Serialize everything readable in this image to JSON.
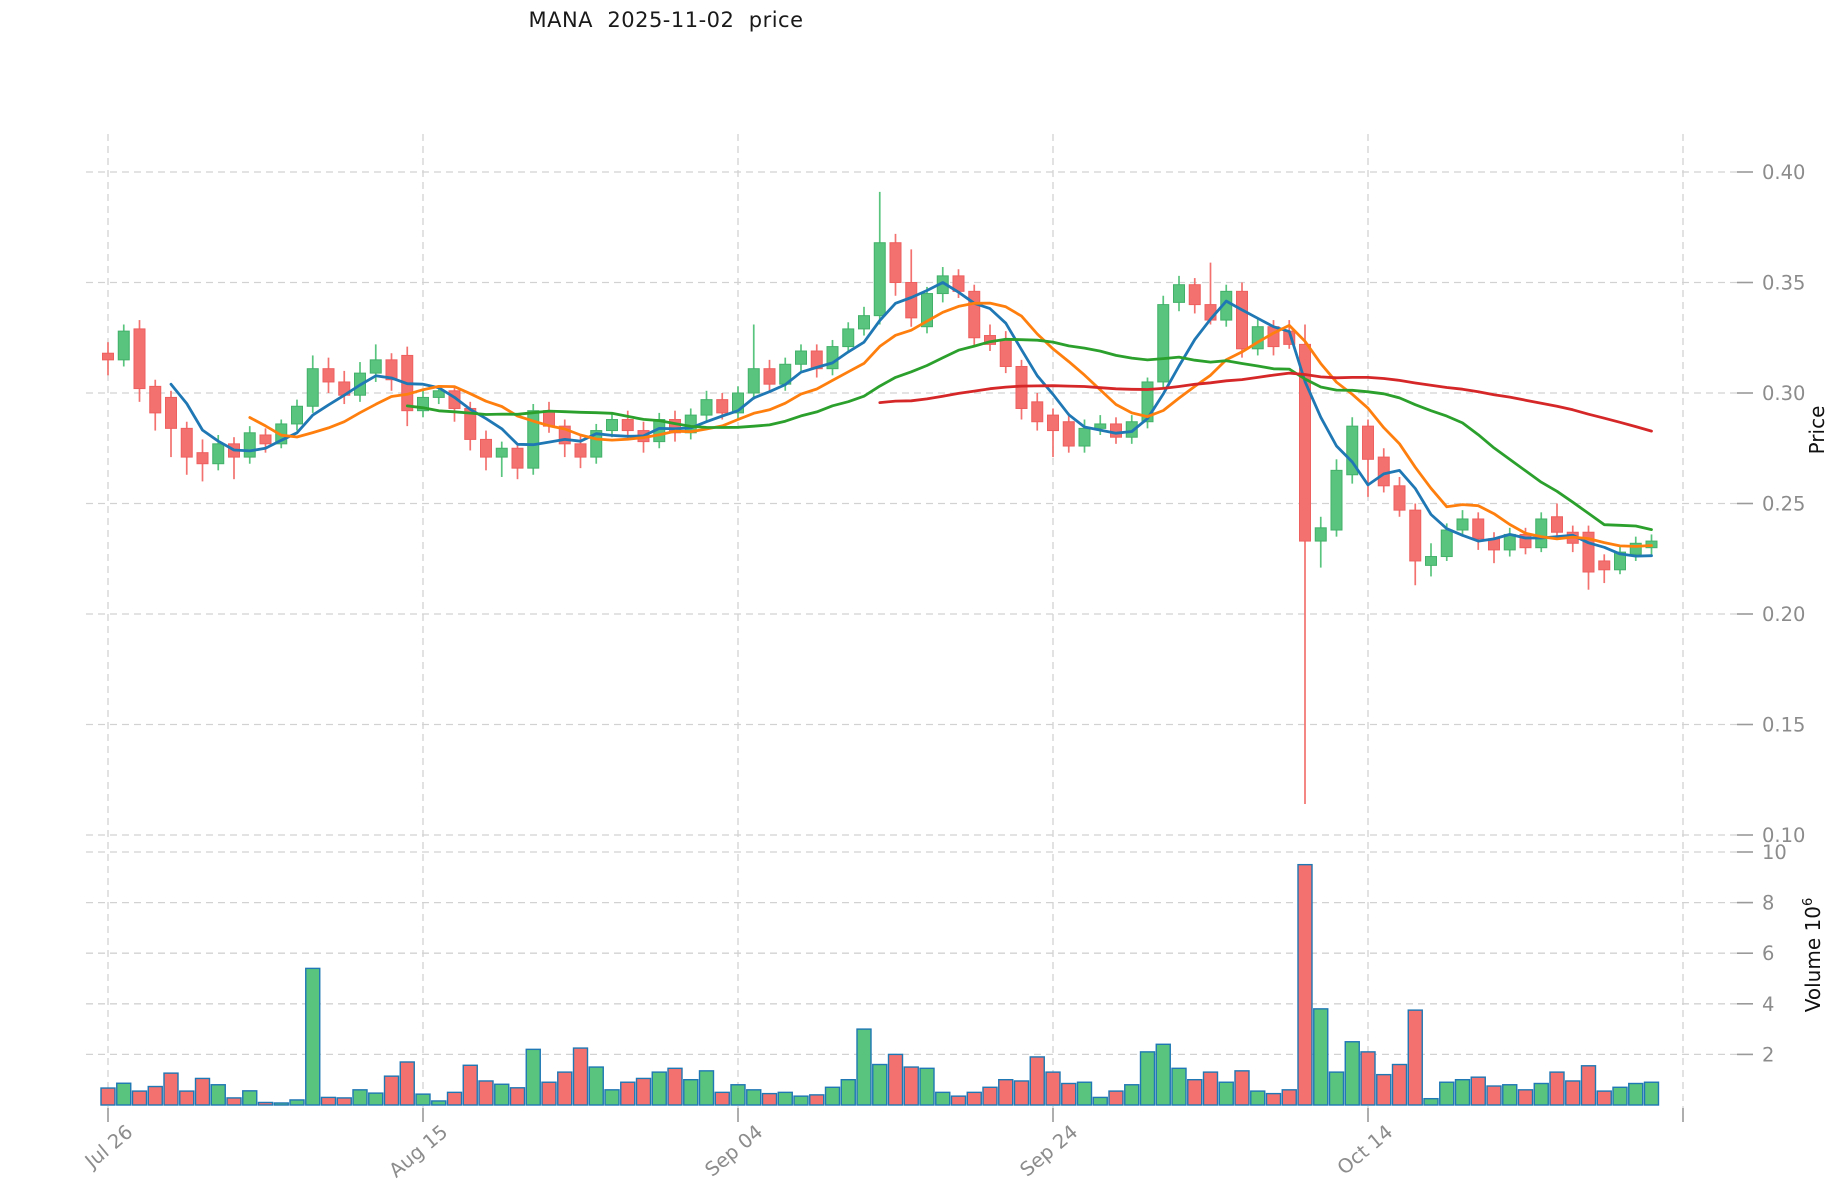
{
  "chart_data": {
    "type": "candlestick",
    "title": "MANA  2025-11-02  price",
    "legend_position": "none",
    "grid": true,
    "price_axis": {
      "label": "Price",
      "side": "right",
      "ticks": [
        0.4,
        0.35,
        0.3,
        0.25,
        0.2,
        0.15,
        0.1
      ],
      "tick_labels": [
        "0.40",
        "0.35",
        "0.30",
        "0.25",
        "0.20",
        "0.15",
        "0.10"
      ],
      "range": [
        0.105,
        0.405
      ]
    },
    "volume_axis": {
      "label": "Volume",
      "unit_base": "10",
      "unit_exponent": "6",
      "side": "right",
      "ticks": [
        10,
        8,
        6,
        4,
        2
      ],
      "tick_labels": [
        "10",
        "8",
        "6",
        "4",
        "2"
      ],
      "range": [
        0,
        11
      ]
    },
    "x_axis": {
      "tick_labels": [
        {
          "day": 0,
          "label": "Jul 26"
        },
        {
          "day": 20,
          "label": "Aug 15"
        },
        {
          "day": 40,
          "label": "Sep 04"
        },
        {
          "day": 60,
          "label": "Sep 24"
        },
        {
          "day": 80,
          "label": "Oct 14"
        },
        {
          "day": 100,
          "label": ""
        }
      ]
    },
    "moving_averages": [
      {
        "period": 5,
        "color": "#1f77b4"
      },
      {
        "period": 10,
        "color": "#ff7f0e"
      },
      {
        "period": 20,
        "color": "#2ca02c"
      },
      {
        "period": 50,
        "color": "#d62728"
      }
    ],
    "colors": {
      "up": "#58c47d",
      "up_edge": "#43b06a",
      "down": "#f3716f",
      "down_edge": "#ee5f5f",
      "volume_edge": "#1f77b4",
      "grid": "#d2d2d2",
      "tick_text": "#8c8c8c",
      "title_text": "#1a1a1a"
    },
    "candles_format": [
      "open",
      "high",
      "low",
      "close",
      "volume_millions"
    ],
    "candles": [
      [
        0.318,
        0.323,
        0.308,
        0.315,
        0.67
      ],
      [
        0.315,
        0.331,
        0.312,
        0.328,
        0.86
      ],
      [
        0.329,
        0.333,
        0.296,
        0.302,
        0.55
      ],
      [
        0.303,
        0.306,
        0.283,
        0.291,
        0.73
      ],
      [
        0.298,
        0.301,
        0.271,
        0.284,
        1.26
      ],
      [
        0.284,
        0.287,
        0.263,
        0.271,
        0.55
      ],
      [
        0.273,
        0.279,
        0.26,
        0.268,
        1.05
      ],
      [
        0.268,
        0.281,
        0.265,
        0.277,
        0.8
      ],
      [
        0.277,
        0.28,
        0.261,
        0.271,
        0.28
      ],
      [
        0.271,
        0.285,
        0.268,
        0.282,
        0.56
      ],
      [
        0.281,
        0.284,
        0.273,
        0.277,
        0.1
      ],
      [
        0.277,
        0.288,
        0.275,
        0.286,
        0.08
      ],
      [
        0.286,
        0.297,
        0.283,
        0.294,
        0.2
      ],
      [
        0.294,
        0.317,
        0.291,
        0.311,
        5.4
      ],
      [
        0.311,
        0.316,
        0.3,
        0.305,
        0.3
      ],
      [
        0.305,
        0.31,
        0.295,
        0.299,
        0.28
      ],
      [
        0.299,
        0.314,
        0.296,
        0.309,
        0.6
      ],
      [
        0.309,
        0.322,
        0.305,
        0.315,
        0.47
      ],
      [
        0.315,
        0.318,
        0.301,
        0.306,
        1.14
      ],
      [
        0.317,
        0.321,
        0.285,
        0.292,
        1.7
      ],
      [
        0.292,
        0.301,
        0.289,
        0.298,
        0.43
      ],
      [
        0.298,
        0.303,
        0.295,
        0.301,
        0.16
      ],
      [
        0.301,
        0.303,
        0.287,
        0.293,
        0.5
      ],
      [
        0.293,
        0.296,
        0.274,
        0.279,
        1.57
      ],
      [
        0.279,
        0.283,
        0.265,
        0.271,
        0.95
      ],
      [
        0.271,
        0.278,
        0.262,
        0.275,
        0.82
      ],
      [
        0.275,
        0.277,
        0.261,
        0.266,
        0.68
      ],
      [
        0.266,
        0.295,
        0.263,
        0.292,
        2.2
      ],
      [
        0.292,
        0.296,
        0.282,
        0.285,
        0.9
      ],
      [
        0.285,
        0.288,
        0.271,
        0.277,
        1.3
      ],
      [
        0.277,
        0.281,
        0.266,
        0.271,
        2.25
      ],
      [
        0.271,
        0.286,
        0.268,
        0.283,
        1.5
      ],
      [
        0.283,
        0.291,
        0.28,
        0.288,
        0.6
      ],
      [
        0.288,
        0.292,
        0.279,
        0.283,
        0.9
      ],
      [
        0.283,
        0.287,
        0.273,
        0.278,
        1.05
      ],
      [
        0.278,
        0.291,
        0.275,
        0.288,
        1.3
      ],
      [
        0.288,
        0.292,
        0.278,
        0.282,
        1.45
      ],
      [
        0.282,
        0.293,
        0.279,
        0.29,
        1.0
      ],
      [
        0.29,
        0.301,
        0.287,
        0.297,
        1.35
      ],
      [
        0.297,
        0.3,
        0.288,
        0.291,
        0.5
      ],
      [
        0.291,
        0.303,
        0.288,
        0.3,
        0.8
      ],
      [
        0.3,
        0.331,
        0.297,
        0.311,
        0.6
      ],
      [
        0.311,
        0.315,
        0.301,
        0.304,
        0.45
      ],
      [
        0.304,
        0.316,
        0.301,
        0.313,
        0.5
      ],
      [
        0.313,
        0.322,
        0.31,
        0.319,
        0.35
      ],
      [
        0.319,
        0.322,
        0.307,
        0.311,
        0.4
      ],
      [
        0.311,
        0.324,
        0.308,
        0.321,
        0.7
      ],
      [
        0.321,
        0.332,
        0.318,
        0.329,
        1.0
      ],
      [
        0.329,
        0.339,
        0.326,
        0.335,
        3.0
      ],
      [
        0.335,
        0.391,
        0.331,
        0.368,
        1.6
      ],
      [
        0.368,
        0.372,
        0.344,
        0.35,
        2.0
      ],
      [
        0.35,
        0.365,
        0.33,
        0.334,
        1.5
      ],
      [
        0.33,
        0.348,
        0.327,
        0.345,
        1.45
      ],
      [
        0.345,
        0.357,
        0.341,
        0.353,
        0.5
      ],
      [
        0.353,
        0.356,
        0.343,
        0.346,
        0.35
      ],
      [
        0.346,
        0.349,
        0.321,
        0.325,
        0.5
      ],
      [
        0.326,
        0.331,
        0.319,
        0.322,
        0.7
      ],
      [
        0.324,
        0.328,
        0.309,
        0.312,
        1.0
      ],
      [
        0.312,
        0.315,
        0.288,
        0.293,
        0.95
      ],
      [
        0.296,
        0.3,
        0.283,
        0.287,
        1.9
      ],
      [
        0.29,
        0.293,
        0.271,
        0.283,
        1.3
      ],
      [
        0.287,
        0.291,
        0.273,
        0.276,
        0.85
      ],
      [
        0.276,
        0.288,
        0.273,
        0.284,
        0.9
      ],
      [
        0.284,
        0.29,
        0.281,
        0.286,
        0.3
      ],
      [
        0.286,
        0.289,
        0.277,
        0.28,
        0.55
      ],
      [
        0.28,
        0.29,
        0.277,
        0.287,
        0.8
      ],
      [
        0.287,
        0.307,
        0.284,
        0.305,
        2.1
      ],
      [
        0.305,
        0.344,
        0.302,
        0.34,
        2.4
      ],
      [
        0.341,
        0.353,
        0.337,
        0.349,
        1.45
      ],
      [
        0.349,
        0.352,
        0.336,
        0.34,
        1.0
      ],
      [
        0.34,
        0.359,
        0.331,
        0.333,
        1.3
      ],
      [
        0.333,
        0.349,
        0.33,
        0.346,
        0.9
      ],
      [
        0.346,
        0.35,
        0.316,
        0.32,
        1.35
      ],
      [
        0.32,
        0.334,
        0.317,
        0.33,
        0.55
      ],
      [
        0.33,
        0.333,
        0.317,
        0.321,
        0.45
      ],
      [
        0.328,
        0.333,
        0.32,
        0.322,
        0.6
      ],
      [
        0.322,
        0.331,
        0.114,
        0.233,
        9.5
      ],
      [
        0.233,
        0.244,
        0.221,
        0.239,
        3.8
      ],
      [
        0.238,
        0.27,
        0.235,
        0.265,
        1.3
      ],
      [
        0.263,
        0.289,
        0.259,
        0.285,
        2.5
      ],
      [
        0.285,
        0.288,
        0.253,
        0.27,
        2.1
      ],
      [
        0.271,
        0.275,
        0.255,
        0.258,
        1.2
      ],
      [
        0.258,
        0.262,
        0.244,
        0.247,
        1.6
      ],
      [
        0.247,
        0.25,
        0.213,
        0.224,
        3.75
      ],
      [
        0.222,
        0.232,
        0.217,
        0.226,
        0.25
      ],
      [
        0.226,
        0.241,
        0.224,
        0.238,
        0.9
      ],
      [
        0.238,
        0.247,
        0.235,
        0.243,
        1.0
      ],
      [
        0.243,
        0.246,
        0.229,
        0.234,
        1.1
      ],
      [
        0.234,
        0.237,
        0.223,
        0.229,
        0.75
      ],
      [
        0.229,
        0.239,
        0.226,
        0.236,
        0.8
      ],
      [
        0.236,
        0.239,
        0.227,
        0.23,
        0.6
      ],
      [
        0.23,
        0.246,
        0.228,
        0.243,
        0.85
      ],
      [
        0.244,
        0.25,
        0.234,
        0.237,
        1.3
      ],
      [
        0.237,
        0.24,
        0.228,
        0.232,
        0.95
      ],
      [
        0.237,
        0.24,
        0.211,
        0.219,
        1.55
      ],
      [
        0.224,
        0.227,
        0.214,
        0.22,
        0.55
      ],
      [
        0.22,
        0.231,
        0.218,
        0.228,
        0.7
      ],
      [
        0.227,
        0.235,
        0.224,
        0.232,
        0.85
      ],
      [
        0.23,
        0.236,
        0.226,
        0.233,
        0.9
      ]
    ]
  }
}
